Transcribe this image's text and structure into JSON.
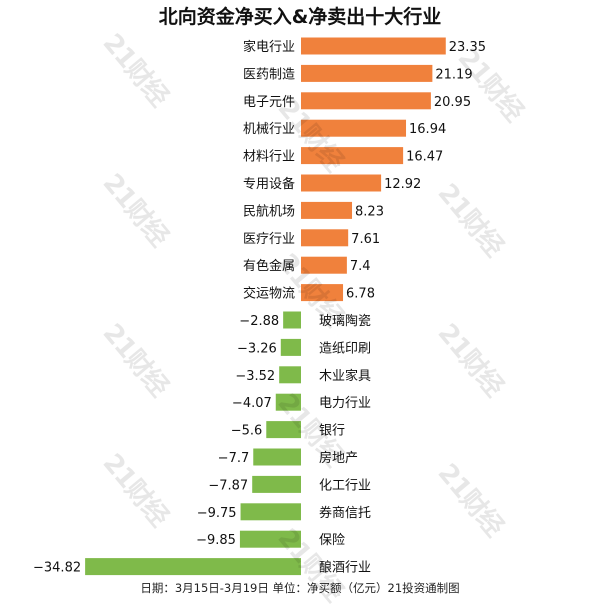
{
  "chart_data": {
    "type": "bar",
    "orientation": "horizontal",
    "title": "北向资金净买入&净卖出十大行业",
    "footer": "日期：3月15日-3月19日 单位：净买额（亿元）21投资通制图",
    "watermark": "21财经",
    "colors": {
      "positive": "#f0813c",
      "negative": "#7fba4a"
    },
    "categories": [
      "家电行业",
      "医药制造",
      "电子元件",
      "机械行业",
      "材料行业",
      "专用设备",
      "民航机场",
      "医疗行业",
      "有色金属",
      "交运物流",
      "玻璃陶瓷",
      "造纸印刷",
      "木业家具",
      "电力行业",
      "银行",
      "房地产",
      "化工行业",
      "券商信托",
      "保险",
      "酿酒行业"
    ],
    "values": [
      23.35,
      21.19,
      20.95,
      16.94,
      16.47,
      12.92,
      8.23,
      7.61,
      7.4,
      6.78,
      -2.88,
      -3.26,
      -3.52,
      -4.07,
      -5.6,
      -7.7,
      -7.87,
      -9.75,
      -9.85,
      -34.82
    ],
    "value_labels": [
      "23.35",
      "21.19",
      "20.95",
      "16.94",
      "16.47",
      "12.92",
      "8.23",
      "7.61",
      "7.4",
      "6.78",
      "−2.88",
      "−3.26",
      "−3.52",
      "−4.07",
      "−5.6",
      "−7.7",
      "−7.87",
      "−9.75",
      "−9.85",
      "−34.82"
    ]
  }
}
